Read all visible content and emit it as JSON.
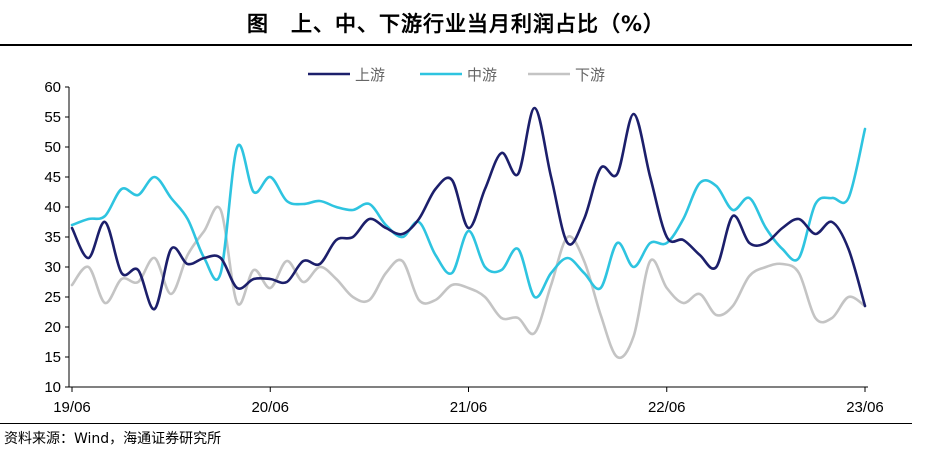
{
  "header": {
    "title": "图　上、中、下游行业当月利润占比（%）"
  },
  "footer": {
    "source": "资料来源：Wind，海通证券研究所"
  },
  "chart_data": {
    "type": "line",
    "title": "图　上、中、下游行业当月利润占比（%）",
    "xlabel": "",
    "ylabel": "",
    "ylim": [
      10,
      60
    ],
    "yticks": [
      10,
      15,
      20,
      25,
      30,
      35,
      40,
      45,
      50,
      55,
      60
    ],
    "xticks": [
      "19/06",
      "20/06",
      "21/06",
      "22/06",
      "23/06"
    ],
    "grid": false,
    "legend": "top-center",
    "x": [
      "19/06",
      "19/07",
      "19/08",
      "19/09",
      "19/10",
      "19/11",
      "19/12",
      "20/01",
      "20/02",
      "20/03",
      "20/04",
      "20/05",
      "20/06",
      "20/07",
      "20/08",
      "20/09",
      "20/10",
      "20/11",
      "20/12",
      "21/01",
      "21/02",
      "21/03",
      "21/04",
      "21/05",
      "21/06",
      "21/07",
      "21/08",
      "21/09",
      "21/10",
      "21/11",
      "21/12",
      "22/01",
      "22/02",
      "22/03",
      "22/04",
      "22/05",
      "22/06",
      "22/07",
      "22/08",
      "22/09",
      "22/10",
      "22/11",
      "22/12",
      "23/01",
      "23/02",
      "23/03",
      "23/04",
      "23/05",
      "23/06"
    ],
    "series": [
      {
        "name": "上游",
        "color": "#1c1f6b",
        "values": [
          36.5,
          31.5,
          37.5,
          29,
          29.5,
          23,
          33,
          30.5,
          31.5,
          31.5,
          26.5,
          28,
          28,
          27.5,
          31,
          30.5,
          34.5,
          35,
          38,
          36.5,
          35.5,
          38,
          43,
          44.5,
          36.5,
          43,
          49,
          45.5,
          56.5,
          45,
          34,
          38,
          46.5,
          45.5,
          55.5,
          45,
          35,
          34.5,
          32,
          30,
          38.5,
          34,
          34,
          36.5,
          38,
          35.5,
          37.5,
          33,
          23.5
        ]
      },
      {
        "name": "中游",
        "color": "#2ec4e0",
        "values": [
          37,
          38,
          38.5,
          43,
          42,
          45,
          41.5,
          38,
          31.5,
          29,
          50,
          42.5,
          45,
          41,
          40.5,
          41,
          40,
          39.5,
          40.5,
          37,
          35,
          37.5,
          32,
          29,
          36,
          30,
          29.5,
          33,
          25,
          29,
          31.5,
          29,
          26.5,
          34,
          30,
          34,
          34,
          38,
          44,
          43.5,
          39.5,
          41.5,
          36.5,
          33,
          31.5,
          40.5,
          41.5,
          41.5,
          53
        ]
      },
      {
        "name": "下游",
        "color": "#c4c4c4",
        "values": [
          27,
          30,
          24,
          28,
          27.5,
          31.5,
          25.5,
          32,
          36,
          39.5,
          24,
          29.5,
          26.5,
          31,
          27.5,
          30,
          28,
          25,
          24.5,
          29,
          31,
          24.5,
          24.5,
          27,
          26.5,
          25,
          21.5,
          21.5,
          19,
          27,
          35,
          31,
          22,
          15,
          18.5,
          31,
          26.5,
          24,
          25.5,
          22,
          23.5,
          28.5,
          30,
          30.5,
          29,
          21.5,
          21.5,
          25,
          23.5
        ]
      }
    ]
  }
}
